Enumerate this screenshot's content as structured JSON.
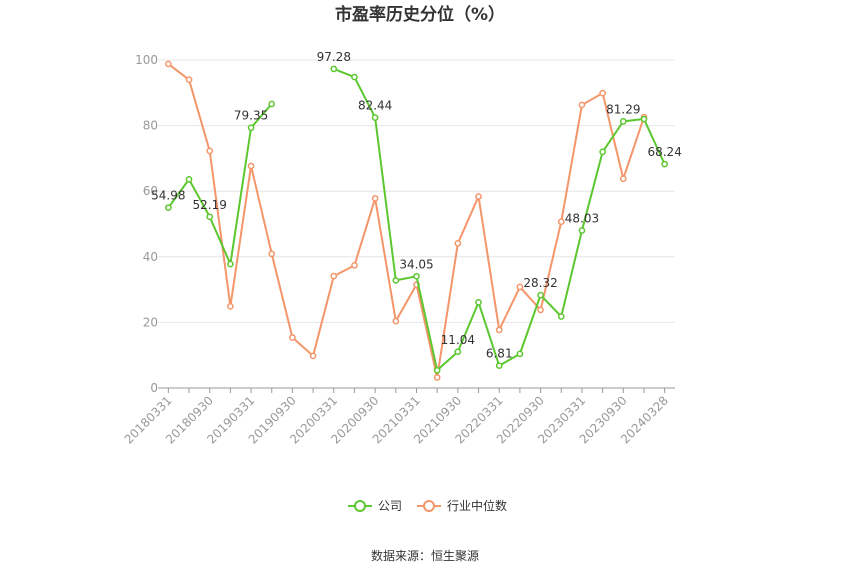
{
  "chart_data": {
    "type": "line",
    "title": "市盈率历史分位（%）",
    "source": "数据来源：恒生聚源",
    "ylim": [
      0,
      100
    ],
    "yticks": [
      0,
      20,
      40,
      60,
      80,
      100
    ],
    "grid": "horizontal",
    "legend_position": "bottom",
    "categories": [
      "20180331",
      "20180630",
      "20180930",
      "20181231",
      "20190331",
      "20190630",
      "20190930",
      "20191231",
      "20200331",
      "20200630",
      "20200930",
      "20201231",
      "20210331",
      "20210630",
      "20210930",
      "20211231",
      "20220331",
      "20220630",
      "20220930",
      "20221231",
      "20230331",
      "20230630",
      "20230930",
      "20231231",
      "20240328"
    ],
    "tick_labels": [
      "20180331",
      "20180930",
      "20190331",
      "20190930",
      "20200331",
      "20200930",
      "20210331",
      "20210930",
      "20220331",
      "20220930",
      "20230331",
      "20230930",
      "20240328"
    ],
    "series": [
      {
        "name": "公司",
        "color": "#5cc72f",
        "values": [
          54.98,
          63.6,
          52.19,
          37.8,
          79.35,
          86.6,
          null,
          null,
          97.28,
          94.8,
          82.44,
          32.8,
          34.05,
          5.4,
          11.04,
          26.1,
          6.81,
          10.4,
          28.32,
          21.8,
          48.03,
          72.0,
          81.29,
          82.0,
          68.24
        ],
        "labels": {
          "0": "54.98",
          "2": "52.19",
          "4": "79.35",
          "8": "97.28",
          "10": "82.44",
          "12": "34.05",
          "14": "11.04",
          "16": "6.81",
          "18": "28.32",
          "20": "48.03",
          "22": "81.29",
          "24": "68.24"
        }
      },
      {
        "name": "行业中位数",
        "color": "#f4956a",
        "values": [
          98.8,
          94.0,
          72.3,
          24.9,
          67.7,
          40.9,
          15.4,
          9.8,
          34.1,
          37.4,
          57.8,
          20.4,
          31.5,
          3.2,
          44.1,
          58.4,
          17.7,
          30.8,
          23.8,
          50.7,
          86.3,
          89.9,
          63.8,
          82.6,
          null
        ]
      }
    ]
  }
}
